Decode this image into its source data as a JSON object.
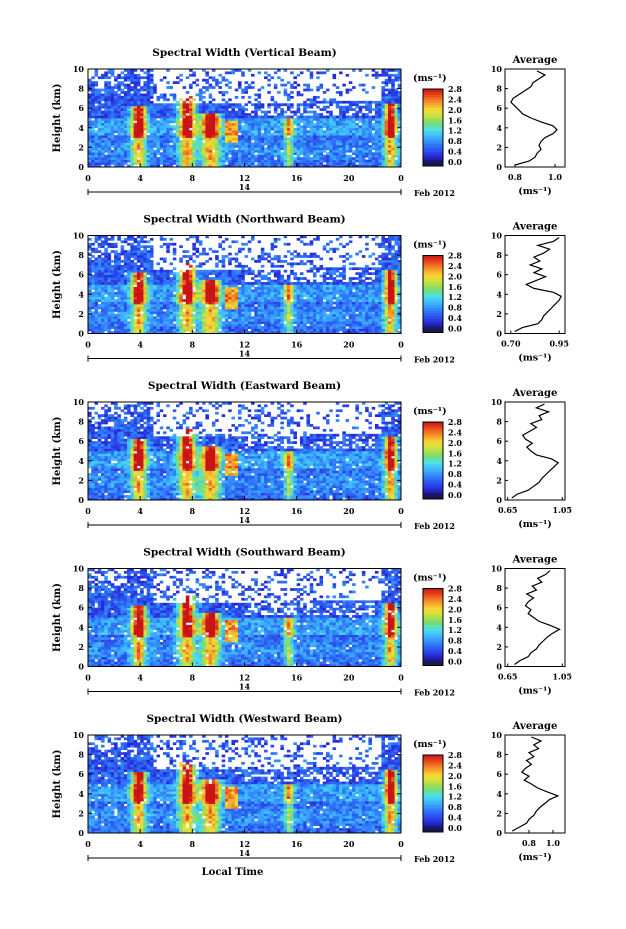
{
  "x_label": "Local Time",
  "date_label": "Feb 2012",
  "day_label": "14",
  "colorbar_unit": "(ms⁻¹)",
  "colorbar_ticks": [
    "0.0",
    "0.4",
    "0.8",
    "1.2",
    "1.6",
    "2.0",
    "2.4",
    "2.8"
  ],
  "colors": {
    "low": "#2b2bd8",
    "mid_blue": "#3aa8ff",
    "cyan": "#4fe3e8",
    "green": "#8fdc4a",
    "yellow": "#f2e23a",
    "orange": "#f5902a",
    "high": "#e0221e"
  },
  "chart_data": [
    {
      "type": "heatmap",
      "title": "Spectral Width (Vertical Beam)",
      "ylabel": "Height (km)",
      "xlabel": "",
      "xlim": [
        0,
        24
      ],
      "ylim": [
        0,
        10
      ],
      "x_ticks": [
        "0",
        "4",
        "8",
        "12",
        "16",
        "20",
        "0"
      ],
      "y_ticks": [
        "0",
        "2",
        "4",
        "6",
        "8",
        "10"
      ],
      "colorbar": {
        "min": 0.0,
        "max": 2.8,
        "unit": "(ms⁻¹)"
      },
      "profile": {
        "title": "Average",
        "xlabel": "(ms⁻¹)",
        "xlim": [
          0.75,
          1.05
        ],
        "x_ticks": [
          "0.8",
          "1.0"
        ],
        "heights": [
          0.2,
          0.6,
          1.0,
          1.4,
          1.8,
          2.2,
          2.6,
          3.0,
          3.4,
          3.8,
          4.2,
          4.6,
          5.0,
          5.4,
          5.8,
          6.2,
          6.6,
          7.0,
          7.4,
          7.8,
          8.2,
          8.6,
          9.0,
          9.4,
          9.8
        ],
        "values": [
          0.8,
          0.87,
          0.9,
          0.91,
          0.93,
          0.92,
          0.93,
          0.95,
          0.99,
          1.01,
          0.99,
          0.93,
          0.88,
          0.84,
          0.82,
          0.8,
          0.78,
          0.79,
          0.82,
          0.85,
          0.88,
          0.89,
          0.92,
          0.95,
          0.91
        ]
      }
    },
    {
      "type": "heatmap",
      "title": "Spectral Width (Northward Beam)",
      "ylabel": "Height (km)",
      "xlabel": "",
      "xlim": [
        0,
        24
      ],
      "ylim": [
        0,
        10
      ],
      "x_ticks": [
        "0",
        "4",
        "8",
        "12",
        "16",
        "20",
        "0"
      ],
      "y_ticks": [
        "0",
        "2",
        "4",
        "6",
        "8",
        "10"
      ],
      "colorbar": {
        "min": 0.0,
        "max": 2.8,
        "unit": "(ms⁻¹)"
      },
      "profile": {
        "title": "Average",
        "xlabel": "(ms⁻¹)",
        "xlim": [
          0.67,
          0.98
        ],
        "x_ticks": [
          "0.70",
          "0.95"
        ],
        "heights": [
          0.2,
          0.6,
          1.0,
          1.4,
          1.8,
          2.2,
          2.6,
          3.0,
          3.4,
          3.8,
          4.2,
          4.6,
          5.0,
          5.4,
          5.8,
          6.2,
          6.6,
          7.0,
          7.4,
          7.8,
          8.2,
          8.6,
          9.0,
          9.4,
          9.8
        ],
        "values": [
          0.72,
          0.76,
          0.84,
          0.86,
          0.87,
          0.89,
          0.91,
          0.93,
          0.95,
          0.96,
          0.92,
          0.82,
          0.78,
          0.83,
          0.88,
          0.82,
          0.86,
          0.8,
          0.85,
          0.82,
          0.87,
          0.9,
          0.84,
          0.92,
          0.95
        ]
      }
    },
    {
      "type": "heatmap",
      "title": "Spectral Width (Eastward Beam)",
      "ylabel": "Height (km)",
      "xlabel": "",
      "xlim": [
        0,
        24
      ],
      "ylim": [
        0,
        10
      ],
      "x_ticks": [
        "0",
        "4",
        "8",
        "12",
        "16",
        "20",
        "0"
      ],
      "y_ticks": [
        "0",
        "2",
        "4",
        "6",
        "8",
        "10"
      ],
      "colorbar": {
        "min": 0.0,
        "max": 2.8,
        "unit": "(ms⁻¹)"
      },
      "profile": {
        "title": "Average",
        "xlabel": "(ms⁻¹)",
        "xlim": [
          0.63,
          1.07
        ],
        "x_ticks": [
          "0.65",
          "1.05"
        ],
        "heights": [
          0.2,
          0.6,
          1.0,
          1.4,
          1.8,
          2.2,
          2.6,
          3.0,
          3.4,
          3.8,
          4.2,
          4.6,
          5.0,
          5.4,
          5.8,
          6.2,
          6.6,
          7.0,
          7.4,
          7.8,
          8.2,
          8.6,
          9.0,
          9.4,
          9.8
        ],
        "values": [
          0.68,
          0.72,
          0.8,
          0.84,
          0.88,
          0.9,
          0.93,
          0.96,
          0.99,
          1.02,
          0.97,
          0.86,
          0.82,
          0.79,
          0.83,
          0.78,
          0.76,
          0.81,
          0.86,
          0.82,
          0.9,
          0.88,
          0.95,
          0.86,
          0.92
        ]
      }
    },
    {
      "type": "heatmap",
      "title": "Spectral Width (Southward Beam)",
      "ylabel": "Height (km)",
      "xlabel": "",
      "xlim": [
        0,
        24
      ],
      "ylim": [
        0,
        10
      ],
      "x_ticks": [
        "0",
        "4",
        "8",
        "12",
        "16",
        "20",
        "0"
      ],
      "y_ticks": [
        "0",
        "2",
        "4",
        "6",
        "8",
        "10"
      ],
      "colorbar": {
        "min": 0.0,
        "max": 2.8,
        "unit": "(ms⁻¹)"
      },
      "profile": {
        "title": "Average",
        "xlabel": "(ms⁻¹)",
        "xlim": [
          0.63,
          1.07
        ],
        "x_ticks": [
          "0.65",
          "1.05"
        ],
        "heights": [
          0.2,
          0.6,
          1.0,
          1.4,
          1.8,
          2.2,
          2.6,
          3.0,
          3.4,
          3.8,
          4.2,
          4.6,
          5.0,
          5.4,
          5.8,
          6.2,
          6.6,
          7.0,
          7.4,
          7.8,
          8.2,
          8.6,
          9.0,
          9.4,
          9.8
        ],
        "values": [
          0.7,
          0.74,
          0.8,
          0.82,
          0.86,
          0.88,
          0.91,
          0.94,
          0.98,
          1.03,
          0.96,
          0.88,
          0.84,
          0.8,
          0.82,
          0.78,
          0.8,
          0.84,
          0.79,
          0.86,
          0.83,
          0.9,
          0.87,
          0.93,
          0.96
        ]
      }
    },
    {
      "type": "heatmap",
      "title": "Spectral Width (Westward Beam)",
      "ylabel": "Height (km)",
      "xlabel": "Local Time",
      "xlim": [
        0,
        24
      ],
      "ylim": [
        0,
        10
      ],
      "x_ticks": [
        "0",
        "4",
        "8",
        "12",
        "16",
        "20",
        "0"
      ],
      "y_ticks": [
        "0",
        "2",
        "4",
        "6",
        "8",
        "10"
      ],
      "colorbar": {
        "min": 0.0,
        "max": 2.8,
        "unit": "(ms⁻¹)"
      },
      "profile": {
        "title": "Average",
        "xlabel": "(ms⁻¹)",
        "xlim": [
          0.6,
          1.1
        ],
        "x_ticks": [
          "0.8",
          "1.0"
        ],
        "heights": [
          0.2,
          0.6,
          1.0,
          1.4,
          1.8,
          2.2,
          2.6,
          3.0,
          3.4,
          3.8,
          4.2,
          4.6,
          5.0,
          5.4,
          5.8,
          6.2,
          6.6,
          7.0,
          7.4,
          7.8,
          8.2,
          8.6,
          9.0,
          9.4,
          9.8
        ],
        "values": [
          0.66,
          0.72,
          0.78,
          0.8,
          0.84,
          0.86,
          0.89,
          0.93,
          0.97,
          1.04,
          0.95,
          0.87,
          0.82,
          0.76,
          0.8,
          0.74,
          0.77,
          0.82,
          0.78,
          0.84,
          0.8,
          0.88,
          0.84,
          0.9,
          0.82
        ]
      }
    }
  ]
}
